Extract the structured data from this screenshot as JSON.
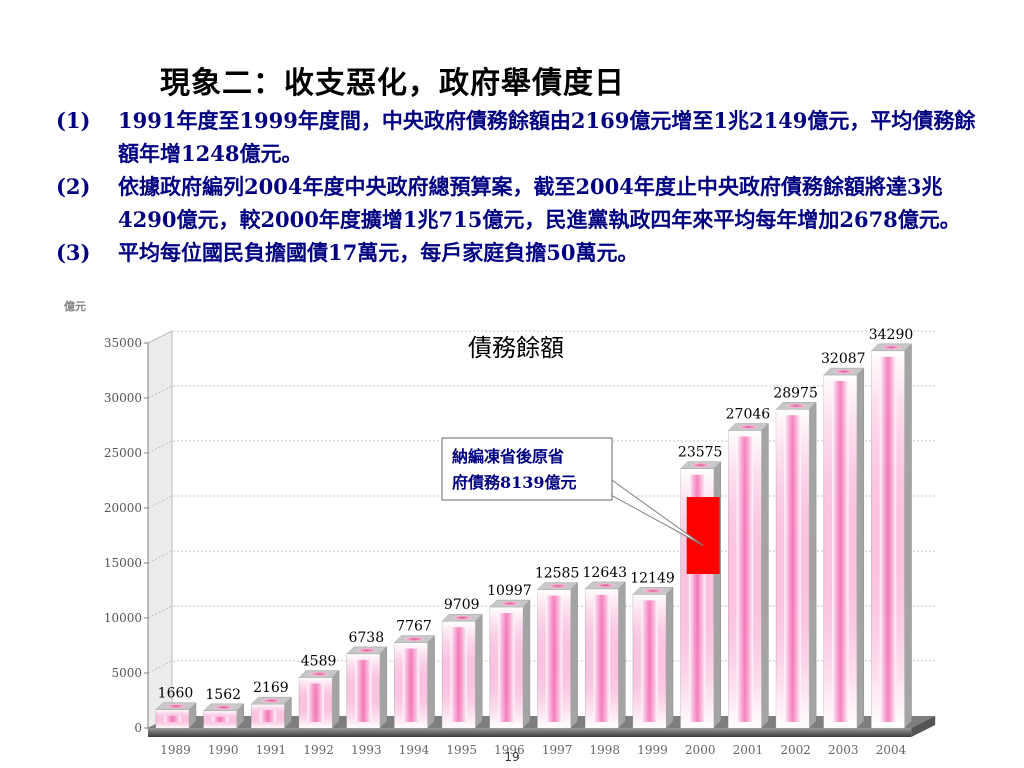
{
  "slide": {
    "title": "現象二：收支惡化，政府舉債度日",
    "points": [
      {
        "num": "(1)",
        "text": "1991年度至1999年度間，中央政府債務餘額由2169億元增至1兆2149億元，平均債務餘額年增1248億元。"
      },
      {
        "num": "(2)",
        "text": "依據政府編列2004年度中央政府總預算案，截至2004年度止中央政府債務餘額將達3兆4290億元，較2000年度擴增1兆715億元，民進黨執政四年來平均每年增加2678億元。"
      },
      {
        "num": "(3)",
        "text": "平均每位國民負擔國債17萬元，每戶家庭負擔50萬元。"
      }
    ],
    "page_number": "19"
  },
  "chart_data": {
    "type": "bar",
    "title": "債務餘額",
    "unit_label": "億元",
    "categories": [
      "1989",
      "1990",
      "1991",
      "1992",
      "1993",
      "1994",
      "1995",
      "1996",
      "1997",
      "1998",
      "1999",
      "2000",
      "2001",
      "2002",
      "2003",
      "2004"
    ],
    "values": [
      1660,
      1562,
      2169,
      4589,
      6738,
      7767,
      9709,
      10997,
      12585,
      12643,
      12149,
      23575,
      27046,
      28975,
      32087,
      34290
    ],
    "ylim": [
      0,
      35000
    ],
    "yticks": [
      0,
      5000,
      10000,
      15000,
      20000,
      25000,
      30000,
      35000
    ],
    "grid": true,
    "highlight": {
      "category": "2000",
      "from": 14000,
      "to": 21000,
      "color": "#ff0000"
    },
    "annotation": {
      "line1": "納編凍省後原省",
      "line2": "府債務8139億元"
    },
    "colors": {
      "bar_face": "#ffffff",
      "bar_glow": "#f05aaa",
      "axis": "#808080"
    }
  }
}
